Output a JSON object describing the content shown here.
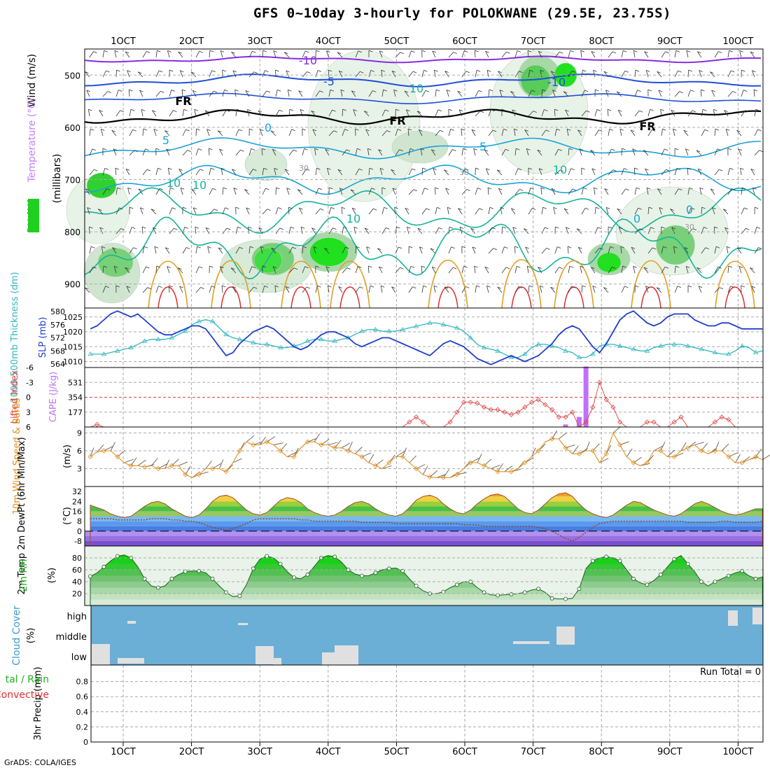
{
  "title": "GFS 0~10day 3-hourly for POLOKWANE (29.5E, 23.75S)",
  "credit": "GrADS: COLA/IGES",
  "colors": {
    "temp_isotherm_neg": "#8a2be2",
    "temp_isotherm_cold": "#1f4fd6",
    "temp_isotherm_cool": "#1aa3d9",
    "temp_isotherm_mild": "#16b39a",
    "temp_isotherm_warm": "#e0a020",
    "temp_isotherm_hot": "#e03030",
    "rh_fill": "#20d020",
    "slp_line": "#1f3fcc",
    "thickness_line": "#30b8c0",
    "lifted_index": "#e04040",
    "cape_bar": "#c070ff",
    "wind_speed": "#e09020",
    "rh2m": "#20b020",
    "cloud_bg": "#6baed6",
    "cloud_gap": "#e0e0e0"
  },
  "time_axis": {
    "labels": [
      "1OCT",
      "2OCT",
      "3OCT",
      "4OCT",
      "5OCT",
      "6OCT",
      "7OCT",
      "8OCT",
      "9OCT",
      "10OCT"
    ]
  },
  "panels": {
    "upper_air": {
      "ylabel": "(millibars)",
      "side_labels": [
        "Wind (m/s)",
        "Temperature (°C)",
        "RH (%)"
      ],
      "yticks": [
        "500",
        "600",
        "700",
        "800",
        "900"
      ],
      "contour_labels": [
        "-10",
        "-5",
        "-10",
        "FR",
        "FR",
        "FR",
        "5",
        "0",
        "5",
        "10",
        "10",
        "10",
        "0",
        "10",
        "30",
        "30",
        "30",
        "10",
        "0"
      ]
    },
    "slp_thickness": {
      "left_label": "1000-500mb Thickness (dm)",
      "right_label": "SLP (mb)",
      "left_ticks": [
        "580",
        "576",
        "572",
        "568",
        "564"
      ],
      "right_ticks": [
        "1025",
        "1020",
        "1015",
        "1010"
      ]
    },
    "cape_li": {
      "left_label": "Lifted Index",
      "right_label": "CAPE (J/kg)",
      "left_ticks": [
        "-6",
        "-3",
        "0",
        "3",
        "6"
      ],
      "right_ticks": [
        "531",
        "354",
        "177"
      ]
    },
    "wind10m": {
      "left_label": "10m Wind Speed & Barbs",
      "unit": "(m/s)",
      "ticks": [
        "9",
        "6",
        "3"
      ]
    },
    "temp2m": {
      "left_label": "2m Temp 2m DewPt (6hr Min/Max)",
      "unit": "(°C)",
      "ticks": [
        "32",
        "24",
        "16",
        "8",
        "0",
        "-8"
      ]
    },
    "rh2m": {
      "left_label": "2m RH",
      "unit": "(%)",
      "ticks": [
        "80",
        "60",
        "40",
        "20"
      ]
    },
    "cloud": {
      "left_label": "Cloud Cover",
      "unit": "(%)",
      "levels": [
        "high",
        "middle",
        "low"
      ]
    },
    "precip": {
      "left_label": "3hr Precip (mm)",
      "side_labels": [
        "tal / Rain",
        "Convective"
      ],
      "ticks": [
        "0.8",
        "0.6",
        "0.4",
        "0.2",
        "0"
      ],
      "run_total": "Run Total = 0"
    }
  },
  "chart_data": [
    {
      "type": "line",
      "name": "slp_thickness",
      "x_hours_from_start": "3-hourly, 0 to 237",
      "series": [
        {
          "name": "SLP (mb)",
          "values": [
            1021,
            1022,
            1024,
            1026,
            1027,
            1026,
            1025,
            1026,
            1024,
            1022,
            1020,
            1019,
            1019,
            1020,
            1021,
            1022,
            1022,
            1021,
            1018,
            1015,
            1012,
            1013,
            1016,
            1018,
            1020,
            1021,
            1022,
            1021,
            1019,
            1017,
            1015,
            1014,
            1015,
            1017,
            1019,
            1020,
            1020,
            1019,
            1018,
            1016,
            1015,
            1016,
            1017,
            1018,
            1018,
            1017,
            1016,
            1015,
            1014,
            1013,
            1012,
            1014,
            1016,
            1017,
            1016,
            1015,
            1013,
            1011,
            1010,
            1009,
            1010,
            1011,
            1012,
            1011,
            1010,
            1011,
            1012,
            1014,
            1016,
            1019,
            1021,
            1022,
            1021,
            1018,
            1015,
            1013,
            1016,
            1020,
            1024,
            1026,
            1027,
            1025,
            1023,
            1022,
            1023,
            1025,
            1026,
            1026,
            1026,
            1024,
            1023,
            1022,
            1022,
            1023,
            1023,
            1022,
            1021,
            1021,
            1021,
            1021
          ]
        },
        {
          "name": "1000-500mb Thickness (dm)",
          "values": [
            567,
            567,
            567,
            567.5,
            568,
            568.5,
            569,
            570,
            571,
            571.5,
            571.5,
            571.5,
            572,
            573,
            574,
            576,
            577,
            577.5,
            577,
            575,
            573,
            572,
            571.5,
            571,
            570.5,
            570,
            570,
            569.5,
            569,
            569,
            569.5,
            570,
            571,
            571.5,
            571.5,
            571,
            571,
            571.5,
            572,
            573,
            574,
            574.5,
            574.5,
            574,
            574,
            574,
            574.5,
            575,
            575.5,
            576,
            576.5,
            576.5,
            576,
            575.5,
            575,
            574,
            572,
            570,
            569,
            568.5,
            568,
            567,
            566,
            566,
            567,
            569,
            570,
            570,
            569.5,
            569,
            568,
            567.5,
            566,
            566,
            567,
            569.5,
            570,
            570,
            569.5,
            569,
            568.5,
            568,
            568,
            569,
            569.5,
            570,
            570,
            570,
            569.5,
            569,
            568.5,
            568,
            567.5,
            567,
            567,
            568,
            569.5,
            569,
            567.5,
            568
          ]
        }
      ],
      "left_range": [
        564,
        580
      ],
      "right_range": [
        1008,
        1028
      ]
    },
    {
      "type": "bar",
      "name": "cape_lifted_index",
      "series": [
        {
          "name": "CAPE (J/kg)",
          "values_by_step": {
            "67": 30,
            "69": 120,
            "70": 720
          }
        },
        {
          "name": "Lifted Index",
          "values": [
            6,
            5.5,
            6,
            6,
            6,
            6,
            6,
            6,
            6,
            6,
            6,
            6,
            6,
            6,
            6,
            6,
            6,
            6,
            6,
            6,
            6,
            6,
            6,
            6,
            6,
            6,
            6,
            6,
            6,
            6,
            6,
            6,
            6,
            6,
            6,
            6,
            6,
            6,
            6,
            6,
            6,
            6,
            6,
            6,
            6,
            6,
            6,
            5,
            4,
            5,
            6,
            6,
            6,
            5,
            3,
            1,
            1,
            1.2,
            2,
            2.5,
            2.5,
            3,
            3.5,
            3,
            2,
            1,
            0.5,
            1.5,
            2.5,
            4,
            4,
            3,
            6,
            5,
            2,
            -3,
            0.5,
            2,
            5,
            6,
            6,
            6,
            5,
            5,
            6,
            6,
            5,
            4,
            6,
            6,
            6,
            6,
            5,
            4,
            4.5,
            6,
            6,
            6,
            6,
            6
          ]
        }
      ],
      "left_range": [
        6,
        -6
      ],
      "right_range": [
        0,
        708
      ]
    },
    {
      "type": "line",
      "name": "wind10m",
      "series": [
        {
          "name": "10m Wind Speed",
          "values": [
            5,
            5.8,
            6,
            6,
            5,
            4,
            3.5,
            3.5,
            3.3,
            3.5,
            3,
            3,
            3.5,
            3.5,
            2,
            1.5,
            2,
            3,
            3,
            3,
            2.5,
            4,
            6,
            7.5,
            7,
            7,
            7.5,
            7,
            6,
            5,
            5,
            6.5,
            7.5,
            7.5,
            7,
            7,
            6.5,
            6.5,
            6,
            5.5,
            5,
            4,
            3.5,
            3,
            4,
            5,
            5,
            4,
            3,
            2,
            1.6,
            1.5,
            1.5,
            1.5,
            2,
            3,
            4,
            4,
            3.5,
            3,
            2.5,
            2.5,
            2.5,
            3,
            4,
            5,
            6,
            7.5,
            8,
            8,
            6.5,
            5.5,
            5.5,
            6,
            6,
            4,
            5.5,
            9,
            7,
            5,
            4,
            3.5,
            4,
            6,
            6,
            5,
            5,
            6,
            6.5,
            7,
            6,
            5.5,
            6,
            6,
            5,
            4,
            4,
            4.5,
            5,
            4.5
          ]
        }
      ],
      "y_range": [
        0,
        10
      ]
    },
    {
      "type": "area",
      "name": "temp2m",
      "series": [
        {
          "name": "2m Temp",
          "values": [
            21,
            19,
            17,
            14,
            12,
            11,
            12,
            16,
            20,
            23,
            24,
            22,
            18,
            15,
            12,
            11,
            13,
            18,
            24,
            28,
            29,
            27,
            22,
            17,
            14,
            13,
            15,
            20,
            25,
            27,
            26,
            23,
            18,
            15,
            13,
            12,
            13,
            16,
            20,
            23,
            24,
            22,
            18,
            15,
            13,
            12,
            14,
            19,
            25,
            28,
            29,
            27,
            22,
            18,
            15,
            14,
            17,
            22,
            26,
            29,
            30,
            28,
            23,
            18,
            15,
            14,
            17,
            22,
            27,
            30,
            31,
            28,
            22,
            17,
            14,
            12,
            11,
            13,
            17,
            21,
            24,
            23,
            20,
            17,
            15,
            13,
            12,
            14,
            18,
            22,
            24,
            22,
            19,
            16,
            14,
            13,
            14,
            16,
            18,
            18
          ]
        },
        {
          "name": "2m DewPt",
          "values": [
            10,
            10,
            10,
            10,
            9,
            9,
            9,
            9,
            9,
            10,
            10,
            10,
            9,
            9,
            8,
            8,
            7,
            5,
            3,
            2,
            1,
            2,
            4,
            6,
            9,
            10,
            10,
            10,
            10,
            10,
            10,
            9,
            9,
            8,
            8,
            8,
            8,
            8,
            8,
            8,
            7,
            7,
            7,
            7,
            7,
            6,
            6,
            6,
            6,
            6,
            6,
            6,
            6,
            6,
            6,
            5,
            5,
            5,
            4,
            4,
            4,
            4,
            4,
            4,
            4,
            4,
            3,
            2,
            0,
            -3,
            -6,
            -8,
            -5,
            -1,
            3,
            6,
            7,
            8,
            8,
            8,
            8,
            8,
            8,
            8,
            8,
            8,
            8,
            8,
            7,
            7,
            7,
            7,
            7,
            8,
            8,
            7,
            7,
            7,
            7,
            8
          ]
        }
      ],
      "y_range": [
        -12,
        36
      ]
    },
    {
      "type": "area",
      "name": "rh2m",
      "series": [
        {
          "name": "2m RH",
          "values": [
            49,
            55,
            65,
            75,
            83,
            85,
            80,
            65,
            45,
            33,
            30,
            33,
            45,
            52,
            57,
            58,
            58,
            55,
            45,
            33,
            22,
            15,
            16,
            35,
            62,
            78,
            83,
            80,
            70,
            57,
            47,
            45,
            52,
            66,
            80,
            84,
            82,
            73,
            60,
            53,
            50,
            50,
            55,
            60,
            62,
            63,
            58,
            45,
            33,
            25,
            20,
            20,
            23,
            30,
            35,
            40,
            40,
            30,
            22,
            18,
            17,
            18,
            19,
            20,
            22,
            26,
            28,
            22,
            12,
            11,
            11,
            12,
            28,
            62,
            75,
            80,
            82,
            80,
            75,
            60,
            45,
            38,
            35,
            42,
            52,
            65,
            78,
            84,
            70,
            57,
            40,
            33,
            40,
            45,
            50,
            55,
            58,
            50,
            45,
            48
          ]
        }
      ],
      "y_range": [
        0,
        100
      ]
    },
    {
      "type": "bar",
      "name": "precip3hr",
      "series": [
        {
          "name": "Total / Rain",
          "values": []
        },
        {
          "name": "Convective",
          "values": []
        }
      ],
      "y_range": [
        0,
        1
      ]
    }
  ]
}
